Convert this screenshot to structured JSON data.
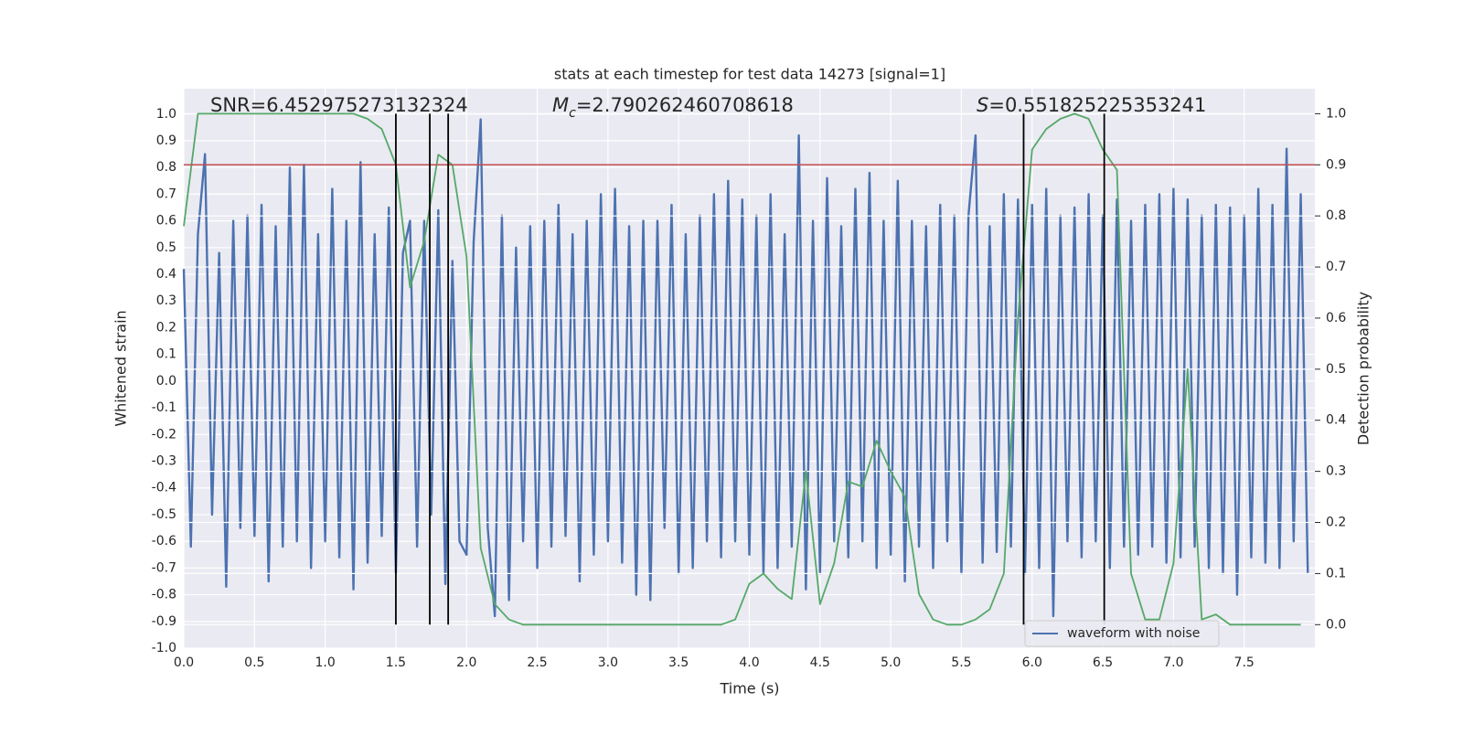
{
  "chart_data": {
    "type": "line",
    "title": "stats at each timestep for test data 14273 [signal=1]",
    "x_label": "Time (s)",
    "y_label": "Whitened strain",
    "y2_label": "Detection probability",
    "xlim": [
      0,
      8
    ],
    "ylim": [
      -1.0,
      1.095
    ],
    "y2lim": [
      -0.046,
      1.049
    ],
    "xticks": [
      {
        "value": 0,
        "label": "0.0"
      },
      0.5,
      {
        "value": 1,
        "label": "1.0"
      },
      1.5,
      {
        "value": 2,
        "label": "2.0"
      },
      2.5,
      {
        "value": 3,
        "label": "3.0"
      },
      3.5,
      {
        "value": 4,
        "label": "4.0"
      },
      4.5,
      {
        "value": 5,
        "label": "5.0"
      },
      5.5,
      {
        "value": 6,
        "label": "6.0"
      },
      6.5,
      {
        "value": 7,
        "label": "7.0"
      },
      7.5
    ],
    "yticks": [
      {
        "value": -1,
        "label": "-1.0"
      },
      -0.9,
      -0.8,
      -0.7,
      -0.6,
      -0.5,
      -0.4,
      -0.3,
      -0.2,
      -0.1,
      {
        "value": 0,
        "label": "0.0"
      },
      0.1,
      0.2,
      0.3,
      0.4,
      0.5,
      0.6,
      0.7,
      0.8,
      0.9,
      {
        "value": 1,
        "label": "1.0"
      }
    ],
    "y2ticks": [
      {
        "value": 0,
        "label": "0.0"
      },
      0.1,
      0.2,
      0.3,
      0.4,
      0.5,
      0.6,
      0.7,
      0.8,
      0.9,
      {
        "value": 1,
        "label": "1.0"
      }
    ],
    "grid": true,
    "legend": "lower right",
    "annotations": [
      {
        "text": "SNR=6.452975273132324"
      },
      {
        "symbol": "M",
        "subscript": "c",
        "text": "=2.790262460708618"
      },
      {
        "symbol": "S",
        "text": "=0.551825225353241"
      }
    ],
    "threshold": {
      "value": 0.9,
      "axis": "y2",
      "color": "#c44e52"
    },
    "vlines": {
      "x": [
        1.5,
        1.74,
        1.87,
        5.94,
        6.51
      ],
      "axis": "y2",
      "color": "#000000"
    },
    "series": [
      {
        "name": "waveform with noise",
        "color": "#4c72b0",
        "x": [
          0,
          0.05,
          0.1,
          0.15,
          0.2,
          0.25,
          0.3,
          0.35,
          0.4,
          0.45,
          0.5,
          0.55,
          0.6,
          0.65,
          0.7,
          0.75,
          0.8,
          0.85,
          0.9,
          0.95,
          1,
          1.05,
          1.1,
          1.15,
          1.2,
          1.25,
          1.3,
          1.35,
          1.4,
          1.45,
          1.5,
          1.55,
          1.6,
          1.65,
          1.7,
          1.75,
          1.8,
          1.85,
          1.9,
          1.95,
          2,
          2.05,
          2.1,
          2.15,
          2.2,
          2.25,
          2.3,
          2.35,
          2.4,
          2.45,
          2.5,
          2.55,
          2.6,
          2.65,
          2.7,
          2.75,
          2.8,
          2.85,
          2.9,
          2.95,
          3,
          3.05,
          3.1,
          3.15,
          3.2,
          3.25,
          3.3,
          3.35,
          3.4,
          3.45,
          3.5,
          3.55,
          3.6,
          3.65,
          3.7,
          3.75,
          3.8,
          3.85,
          3.9,
          3.95,
          4,
          4.05,
          4.1,
          4.15,
          4.2,
          4.25,
          4.3,
          4.35,
          4.4,
          4.45,
          4.5,
          4.55,
          4.6,
          4.65,
          4.7,
          4.75,
          4.8,
          4.85,
          4.9,
          4.95,
          5,
          5.05,
          5.1,
          5.15,
          5.2,
          5.25,
          5.3,
          5.35,
          5.4,
          5.45,
          5.5,
          5.55,
          5.6,
          5.65,
          5.7,
          5.75,
          5.8,
          5.85,
          5.9,
          5.95,
          6,
          6.05,
          6.1,
          6.15,
          6.2,
          6.25,
          6.3,
          6.35,
          6.4,
          6.45,
          6.5,
          6.55,
          6.6,
          6.65,
          6.7,
          6.75,
          6.8,
          6.85,
          6.9,
          6.95,
          7,
          7.05,
          7.1,
          7.15,
          7.2,
          7.25,
          7.3,
          7.35,
          7.4,
          7.45,
          7.5,
          7.55,
          7.6,
          7.65,
          7.7,
          7.75,
          7.8,
          7.85,
          7.9,
          7.95
        ],
        "values": [
          0.42,
          -0.62,
          0.55,
          0.85,
          -0.5,
          0.48,
          -0.77,
          0.6,
          -0.55,
          0.62,
          -0.58,
          0.66,
          -0.75,
          0.58,
          -0.62,
          0.8,
          -0.6,
          0.81,
          -0.7,
          0.55,
          -0.6,
          0.72,
          -0.66,
          0.6,
          -0.78,
          0.82,
          -0.68,
          0.55,
          -0.58,
          0.65,
          -0.72,
          0.48,
          0.6,
          -0.62,
          0.6,
          -0.5,
          0.64,
          -0.76,
          0.45,
          -0.6,
          -0.65,
          0.52,
          0.98,
          -0.55,
          -0.88,
          0.62,
          -0.82,
          0.5,
          -0.6,
          0.58,
          -0.7,
          0.6,
          -0.62,
          0.66,
          -0.58,
          0.55,
          -0.75,
          0.6,
          -0.65,
          0.7,
          -0.6,
          0.72,
          -0.68,
          0.58,
          -0.8,
          0.6,
          -0.82,
          0.6,
          -0.55,
          0.66,
          -0.72,
          0.55,
          -0.7,
          0.62,
          -0.6,
          0.7,
          -0.66,
          0.75,
          -0.6,
          0.68,
          -0.65,
          0.62,
          -0.72,
          0.7,
          -0.7,
          0.55,
          -0.62,
          0.92,
          -0.78,
          0.6,
          -0.72,
          0.76,
          -0.6,
          0.58,
          -0.66,
          0.72,
          -0.6,
          0.78,
          -0.7,
          0.6,
          -0.65,
          0.75,
          -0.75,
          0.6,
          -0.62,
          0.58,
          -0.7,
          0.66,
          -0.6,
          0.62,
          -0.72,
          0.62,
          0.92,
          -0.68,
          0.58,
          -0.64,
          0.7,
          -0.62,
          0.68,
          -0.72,
          0.66,
          -0.7,
          0.72,
          -0.88,
          0.62,
          -0.6,
          0.65,
          -0.66,
          0.7,
          -0.6,
          0.62,
          -0.7,
          0.68,
          -0.62,
          0.6,
          -0.65,
          0.66,
          -0.62,
          0.7,
          -0.68,
          0.72,
          -0.66,
          0.68,
          -0.62,
          0.62,
          -0.7,
          0.66,
          -0.72,
          0.65,
          -0.8,
          0.62,
          -0.66,
          0.72,
          -0.68,
          0.66,
          -0.7,
          0.87,
          -0.6,
          0.7,
          -0.72
        ]
      },
      {
        "color": "#55a868",
        "axis": "y2",
        "x": [
          0,
          0.1,
          0.2,
          0.3,
          0.4,
          0.5,
          0.6,
          0.7,
          0.8,
          0.9,
          1,
          1.1,
          1.2,
          1.3,
          1.4,
          1.5,
          1.6,
          1.7,
          1.8,
          1.9,
          2,
          2.1,
          2.2,
          2.3,
          2.4,
          2.5,
          2.6,
          2.7,
          2.8,
          2.9,
          3,
          3.1,
          3.2,
          3.3,
          3.4,
          3.5,
          3.6,
          3.7,
          3.8,
          3.9,
          4,
          4.1,
          4.2,
          4.3,
          4.4,
          4.5,
          4.6,
          4.7,
          4.8,
          4.9,
          5,
          5.1,
          5.2,
          5.3,
          5.4,
          5.5,
          5.6,
          5.7,
          5.8,
          5.9,
          6,
          6.1,
          6.2,
          6.3,
          6.4,
          6.5,
          6.6,
          6.7,
          6.8,
          6.9,
          7,
          7.1,
          7.2,
          7.3,
          7.4,
          7.5,
          7.6,
          7.7,
          7.8,
          7.9
        ],
        "values": [
          0.78,
          1,
          1,
          1,
          1,
          1,
          1,
          1,
          1,
          1,
          1,
          1,
          1,
          0.99,
          0.97,
          0.9,
          0.66,
          0.75,
          0.92,
          0.9,
          0.72,
          0.15,
          0.04,
          0.01,
          0,
          0,
          0,
          0,
          0,
          0,
          0,
          0,
          0,
          0,
          0,
          0,
          0,
          0,
          0,
          0.01,
          0.08,
          0.1,
          0.07,
          0.05,
          0.3,
          0.04,
          0.12,
          0.28,
          0.27,
          0.36,
          0.3,
          0.25,
          0.06,
          0.01,
          0,
          0,
          0.01,
          0.03,
          0.1,
          0.6,
          0.93,
          0.97,
          0.99,
          1,
          0.99,
          0.93,
          0.89,
          0.1,
          0.01,
          0.01,
          0.12,
          0.5,
          0.01,
          0.02,
          0,
          0,
          0,
          0,
          0,
          0
        ]
      }
    ]
  }
}
